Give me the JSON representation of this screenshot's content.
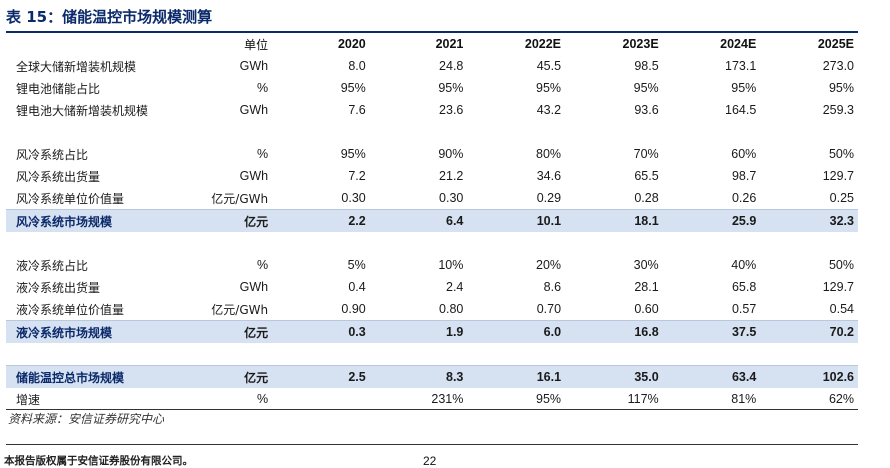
{
  "title": "表 15：储能温控市场规模测算",
  "header": {
    "unit_label": "单位",
    "years": [
      "2020",
      "2021",
      "2022E",
      "2023E",
      "2024E",
      "2025E"
    ]
  },
  "rows": [
    {
      "type": "data",
      "name": "全球大储新增装机规模",
      "unit": "GWh",
      "values": [
        "8.0",
        "24.8",
        "45.5",
        "98.5",
        "173.1",
        "273.0"
      ]
    },
    {
      "type": "data",
      "name": "锂电池储能占比",
      "unit": "%",
      "values": [
        "95%",
        "95%",
        "95%",
        "95%",
        "95%",
        "95%"
      ]
    },
    {
      "type": "data",
      "name": "锂电池大储新增装机规模",
      "unit": "GWh",
      "values": [
        "7.6",
        "23.6",
        "43.2",
        "93.6",
        "164.5",
        "259.3"
      ]
    },
    {
      "type": "spacer"
    },
    {
      "type": "data",
      "name": "风冷系统占比",
      "unit": "%",
      "values": [
        "95%",
        "90%",
        "80%",
        "70%",
        "60%",
        "50%"
      ]
    },
    {
      "type": "data",
      "name": "风冷系统出货量",
      "unit": "GWh",
      "values": [
        "7.2",
        "21.2",
        "34.6",
        "65.5",
        "98.7",
        "129.7"
      ]
    },
    {
      "type": "data",
      "name": "风冷系统单位价值量",
      "unit": "亿元/GWh",
      "values": [
        "0.30",
        "0.30",
        "0.29",
        "0.28",
        "0.26",
        "0.25"
      ]
    },
    {
      "type": "highlight",
      "name": "风冷系统市场规模",
      "unit": "亿元",
      "values": [
        "2.2",
        "6.4",
        "10.1",
        "18.1",
        "25.9",
        "32.3"
      ]
    },
    {
      "type": "spacer"
    },
    {
      "type": "data",
      "name": "液冷系统占比",
      "unit": "%",
      "values": [
        "5%",
        "10%",
        "20%",
        "30%",
        "40%",
        "50%"
      ]
    },
    {
      "type": "data",
      "name": "液冷系统出货量",
      "unit": "GWh",
      "values": [
        "0.4",
        "2.4",
        "8.6",
        "28.1",
        "65.8",
        "129.7"
      ]
    },
    {
      "type": "data",
      "name": "液冷系统单位价值量",
      "unit": "亿元/GWh",
      "values": [
        "0.90",
        "0.80",
        "0.70",
        "0.60",
        "0.57",
        "0.54"
      ]
    },
    {
      "type": "highlight",
      "name": "液冷系统市场规模",
      "unit": "亿元",
      "values": [
        "0.3",
        "1.9",
        "6.0",
        "16.8",
        "37.5",
        "70.2"
      ]
    },
    {
      "type": "spacer"
    },
    {
      "type": "highlight",
      "name": "储能温控总市场规模",
      "unit": "亿元",
      "values": [
        "2.5",
        "8.3",
        "16.1",
        "35.0",
        "63.4",
        "102.6"
      ]
    },
    {
      "type": "data",
      "name": "增速",
      "unit": "%",
      "values": [
        "",
        "231%",
        "95%",
        "117%",
        "81%",
        "62%"
      ]
    }
  ],
  "source": "资料来源：安信证券研究中心",
  "footer": "本报告版权属于安信证券股份有限公司。",
  "page_number": "22",
  "colors": {
    "accent": "#0b2a6b",
    "highlight_row": "#d6e1f1"
  }
}
